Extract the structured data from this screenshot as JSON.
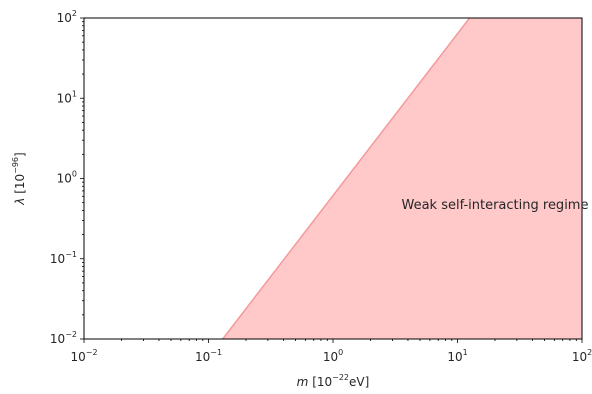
{
  "chart_data": {
    "type": "area",
    "x_scale": "log",
    "y_scale": "log",
    "xlim": [
      0.01,
      100
    ],
    "ylim": [
      0.01,
      100
    ],
    "x_ticks": [
      {
        "value": 0.01,
        "base": "10",
        "exp": "−2"
      },
      {
        "value": 0.1,
        "base": "10",
        "exp": "−1"
      },
      {
        "value": 1,
        "base": "10",
        "exp": "0"
      },
      {
        "value": 10,
        "base": "10",
        "exp": "1"
      },
      {
        "value": 100,
        "base": "10",
        "exp": "2"
      }
    ],
    "y_ticks": [
      {
        "value": 0.01,
        "base": "10",
        "exp": "−2"
      },
      {
        "value": 0.1,
        "base": "10",
        "exp": "−1"
      },
      {
        "value": 1,
        "base": "10",
        "exp": "0"
      },
      {
        "value": 10,
        "base": "10",
        "exp": "1"
      },
      {
        "value": 100,
        "base": "10",
        "exp": "2"
      }
    ],
    "xlabel": {
      "var": "m",
      "pre": " [10",
      "exp": "−22",
      "post": "eV]"
    },
    "ylabel": {
      "var": "λ",
      "pre": " [10",
      "exp": "−96",
      "post": "]"
    },
    "series": [
      {
        "boundary_x": [
          0.13,
          12.5
        ],
        "boundary_y": [
          0.01,
          100
        ],
        "fill_color": "#ffc8c9",
        "line_color": "#f59a9c"
      }
    ],
    "annotation": {
      "text": "Weak self-interacting regime",
      "x": 20,
      "y": 0.47
    },
    "grid": false
  }
}
